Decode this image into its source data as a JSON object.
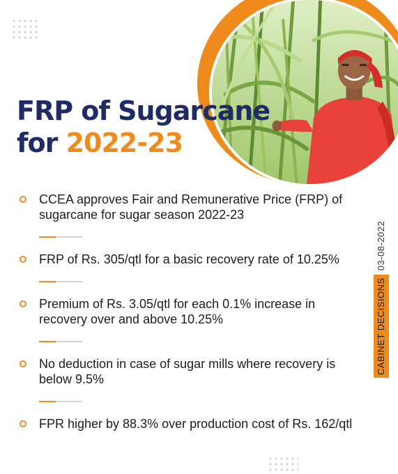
{
  "title": {
    "line1": "FRP of Sugarcane",
    "line2_prefix": "for ",
    "line2_accent": "2022-23"
  },
  "bullets": [
    "CCEA approves Fair and Remunerative Price (FRP) of sugarcane for sugar season 2022-23",
    "FRP of Rs. 305/qtl for a basic recovery rate of 10.25%",
    "Premium of Rs. 3.05/qtl for each 0.1% increase in recovery over and above 10.25%",
    "No deduction in case of sugar mills where recovery is below 9.5%",
    "FPR higher by 88.3% over production cost of Rs. 162/qtl"
  ],
  "side_label": {
    "category": "CABINET DECISIONS",
    "date": "03-08-2022"
  },
  "colors": {
    "navy": "#1e2b66",
    "orange": "#ef8a1c",
    "text": "#1d1d1d"
  }
}
